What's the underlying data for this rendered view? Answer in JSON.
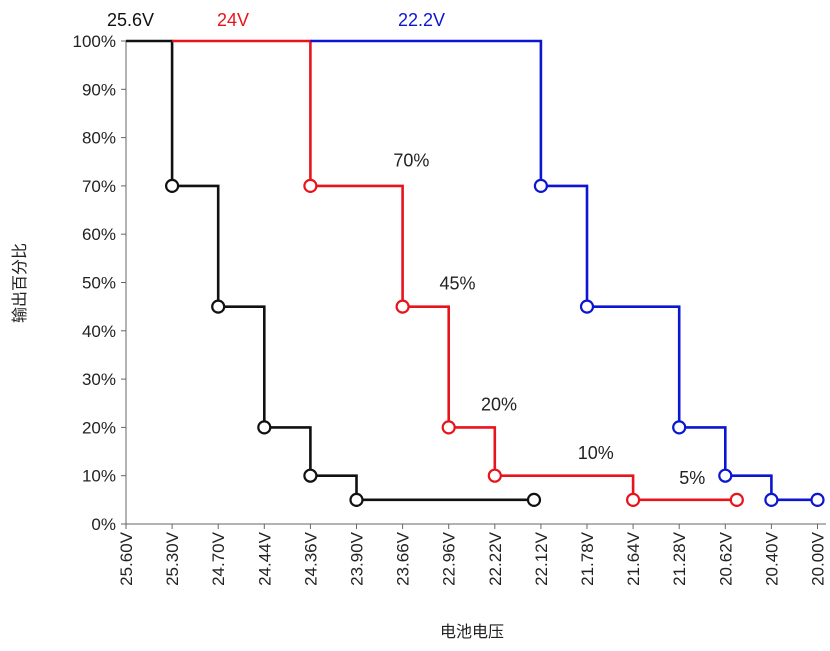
{
  "chart_data": {
    "type": "line",
    "step": true,
    "xlabel": "电池电压",
    "ylabel": "输出百分比",
    "x_categories": [
      "25.60V",
      "25.30V",
      "24.70V",
      "24.44V",
      "24.36V",
      "23.90V",
      "23.66V",
      "22.96V",
      "22.22V",
      "22.12V",
      "21.78V",
      "21.64V",
      "21.28V",
      "20.62V",
      "20.40V",
      "20.00V"
    ],
    "yticks": [
      "0%",
      "10%",
      "20%",
      "30%",
      "40%",
      "50%",
      "60%",
      "70%",
      "80%",
      "90%",
      "100%"
    ],
    "ylim": [
      0,
      100
    ],
    "grid": false,
    "series": [
      {
        "name": "25.6V",
        "color": "#111111",
        "points": [
          {
            "x": 0,
            "y": 100
          },
          {
            "x": 1,
            "y": 100
          },
          {
            "x": 1,
            "y": 70,
            "marker": true
          },
          {
            "x": 2,
            "y": 70
          },
          {
            "x": 2,
            "y": 45,
            "marker": true
          },
          {
            "x": 3,
            "y": 45
          },
          {
            "x": 3,
            "y": 20,
            "marker": true
          },
          {
            "x": 4,
            "y": 20
          },
          {
            "x": 4,
            "y": 10,
            "marker": true
          },
          {
            "x": 5,
            "y": 10
          },
          {
            "x": 5,
            "y": 5,
            "marker": true
          },
          {
            "x": 8.85,
            "y": 5,
            "marker": true
          }
        ]
      },
      {
        "name": "24V",
        "color": "#e8141c",
        "points": [
          {
            "x": 1,
            "y": 100
          },
          {
            "x": 4,
            "y": 100
          },
          {
            "x": 4,
            "y": 70,
            "marker": true
          },
          {
            "x": 6,
            "y": 70
          },
          {
            "x": 6,
            "y": 45,
            "marker": true
          },
          {
            "x": 7,
            "y": 45
          },
          {
            "x": 7,
            "y": 20,
            "marker": true
          },
          {
            "x": 8,
            "y": 20
          },
          {
            "x": 8,
            "y": 10,
            "marker": true
          },
          {
            "x": 11,
            "y": 10
          },
          {
            "x": 11,
            "y": 5,
            "marker": true
          },
          {
            "x": 13.25,
            "y": 5,
            "marker": true
          }
        ]
      },
      {
        "name": "22.2V",
        "color": "#0c16d0",
        "points": [
          {
            "x": 4,
            "y": 100
          },
          {
            "x": 9,
            "y": 100
          },
          {
            "x": 9,
            "y": 70,
            "marker": true
          },
          {
            "x": 10,
            "y": 70
          },
          {
            "x": 10,
            "y": 45,
            "marker": true
          },
          {
            "x": 12,
            "y": 45
          },
          {
            "x": 12,
            "y": 20,
            "marker": true
          },
          {
            "x": 13,
            "y": 20
          },
          {
            "x": 13,
            "y": 10,
            "marker": true
          },
          {
            "x": 14,
            "y": 10
          },
          {
            "x": 14,
            "y": 5,
            "marker": true
          },
          {
            "x": 15,
            "y": 5,
            "marker": true
          }
        ]
      }
    ],
    "annotations": [
      {
        "text": "70%",
        "x": 5.8,
        "y": 74
      },
      {
        "text": "45%",
        "x": 6.8,
        "y": 48.5
      },
      {
        "text": "20%",
        "x": 7.7,
        "y": 23.5
      },
      {
        "text": "10%",
        "x": 9.8,
        "y": 13.5
      },
      {
        "text": "5%",
        "x": 12.0,
        "y": 8.3
      }
    ]
  }
}
